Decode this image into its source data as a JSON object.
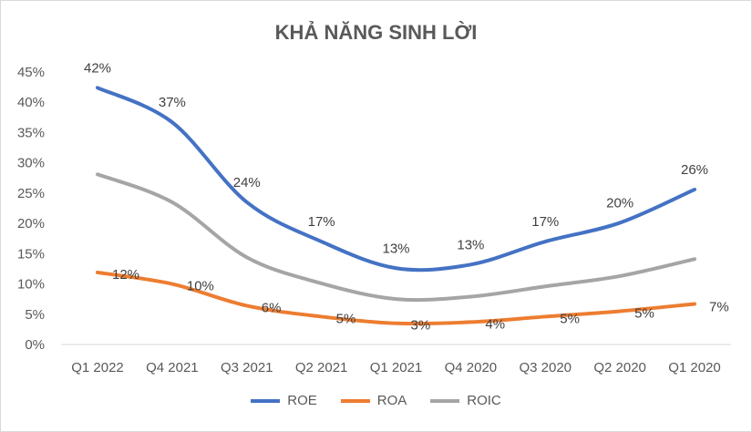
{
  "chart_data": {
    "type": "line",
    "title": "KHẢ NĂNG SINH LỜI",
    "categories": [
      "Q1 2022",
      "Q4 2021",
      "Q3 2021",
      "Q2 2021",
      "Q1 2021",
      "Q4 2020",
      "Q3 2020",
      "Q2 2020",
      "Q1 2020"
    ],
    "ylim": [
      0,
      45
    ],
    "yticks": [
      "0%",
      "5%",
      "10%",
      "15%",
      "20%",
      "25%",
      "30%",
      "35%",
      "40%",
      "45%"
    ],
    "grid": false,
    "legend_position": "bottom",
    "series": [
      {
        "name": "ROE",
        "color": "#4472c4",
        "values": [
          42.4,
          36.7,
          23.5,
          17.0,
          12.6,
          13.2,
          17.0,
          20.1,
          25.6
        ],
        "labels": [
          "42%",
          "37%",
          "24%",
          "17%",
          "13%",
          "13%",
          "17%",
          "20%",
          "26%"
        ]
      },
      {
        "name": "ROA",
        "color": "#ed7d31",
        "values": [
          11.9,
          10.0,
          6.4,
          4.6,
          3.5,
          3.7,
          4.6,
          5.5,
          6.7
        ],
        "labels": [
          "12%",
          "10%",
          "6%",
          "5%",
          "3%",
          "4%",
          "5%",
          "5%",
          "7%"
        ]
      },
      {
        "name": "ROIC",
        "color": "#a5a5a5",
        "values": [
          28.1,
          23.5,
          14.4,
          10.1,
          7.5,
          7.9,
          9.6,
          11.3,
          14.1
        ],
        "labels": []
      }
    ]
  }
}
